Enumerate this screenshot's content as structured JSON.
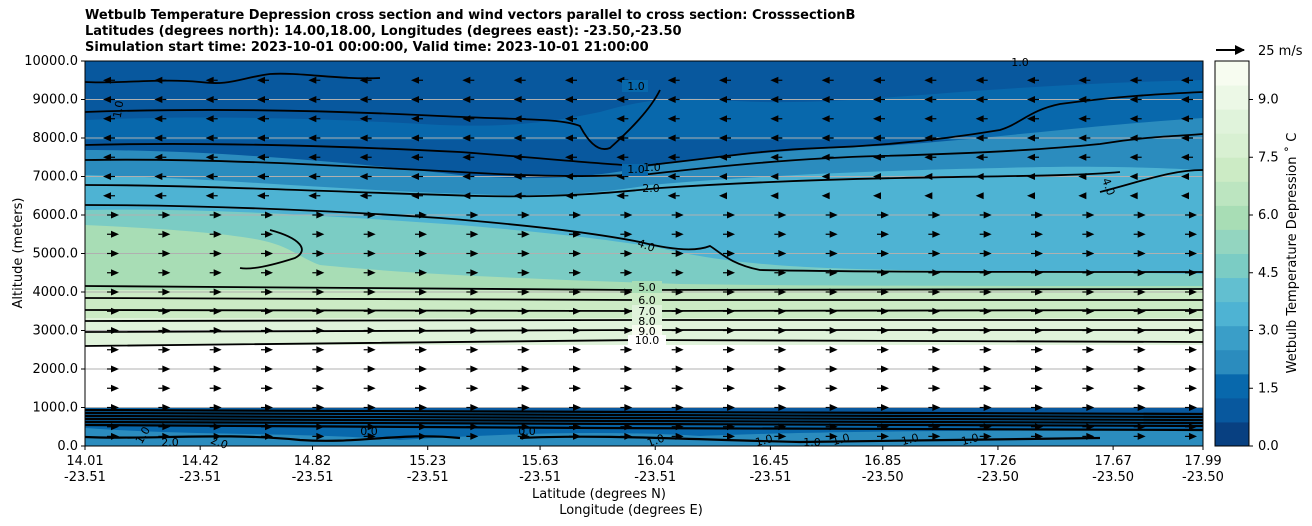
{
  "title_lines": [
    "Wetbulb Temperature Depression cross section and wind vectors parallel to cross section: CrosssectionB",
    "Latitudes (degrees north): 14.00,18.00, Longitudes (degrees east): -23.50,-23.50",
    "Simulation start time: 2023-10-01 00:00:00, Valid time: 2023-10-01 21:00:00"
  ],
  "chart_data": {
    "type": "contour",
    "title": "Wetbulb Temperature Depression cross section and wind vectors parallel to cross section: CrosssectionB",
    "ylabel": "Altitude (meters)",
    "xlabel": "Latitude (degrees N)",
    "xlabel2": "Longitude (degrees E)",
    "ylim": [
      0,
      10000
    ],
    "yticks": [
      "0.0",
      "1000.0",
      "2000.0",
      "3000.0",
      "4000.0",
      "5000.0",
      "6000.0",
      "7000.0",
      "8000.0",
      "9000.0",
      "10000.0"
    ],
    "xticks_lat": [
      "14.01",
      "14.42",
      "14.82",
      "15.23",
      "15.63",
      "16.04",
      "16.45",
      "16.85",
      "17.26",
      "17.67",
      "17.99"
    ],
    "xticks_lon": [
      "-23.51",
      "-23.51",
      "-23.51",
      "-23.51",
      "-23.51",
      "-23.51",
      "-23.51",
      "-23.50",
      "-23.50",
      "-23.50",
      "-23.50"
    ],
    "colorbar": {
      "label": "Wetbulb Temperature Depression ˚ C",
      "ticks": [
        "0.0",
        "1.5",
        "3.0",
        "4.5",
        "6.0",
        "7.5",
        "9.0"
      ],
      "range": [
        0,
        10
      ]
    },
    "quiver_key": "25 m/s",
    "contour_labels": [
      "1.0",
      "1.0",
      "1.0",
      "1.0",
      "1.0",
      "2.0",
      "4.0",
      "4.0",
      "5.0",
      "6.0",
      "7.0",
      "8.0",
      "9.0",
      "10.0",
      "0.0",
      "0.0",
      "2.0",
      "2.0",
      "1.0",
      "1.0",
      "1.0",
      "1.0",
      "1.0",
      "1.0",
      "1.0"
    ],
    "wind_rows": [
      {
        "alt": 9500,
        "dir": "W"
      },
      {
        "alt": 9000,
        "dir": "W"
      },
      {
        "alt": 8500,
        "dir": "W"
      },
      {
        "alt": 8000,
        "dir": "W"
      },
      {
        "alt": 7500,
        "dir": "W"
      },
      {
        "alt": 7000,
        "dir": "W"
      },
      {
        "alt": 6500,
        "dir": "W"
      },
      {
        "alt": 6000,
        "dir": "E"
      },
      {
        "alt": 5500,
        "dir": "E"
      },
      {
        "alt": 5000,
        "dir": "E"
      },
      {
        "alt": 4500,
        "dir": "E"
      },
      {
        "alt": 4000,
        "dir": "E"
      },
      {
        "alt": 3500,
        "dir": "E"
      },
      {
        "alt": 3000,
        "dir": "E"
      },
      {
        "alt": 2500,
        "dir": "E"
      },
      {
        "alt": 2000,
        "dir": "E"
      },
      {
        "alt": 1500,
        "dir": "E"
      },
      {
        "alt": 1000,
        "dir": "E"
      },
      {
        "alt": 500,
        "dir": "E"
      },
      {
        "alt": 250,
        "dir": "E"
      }
    ]
  }
}
